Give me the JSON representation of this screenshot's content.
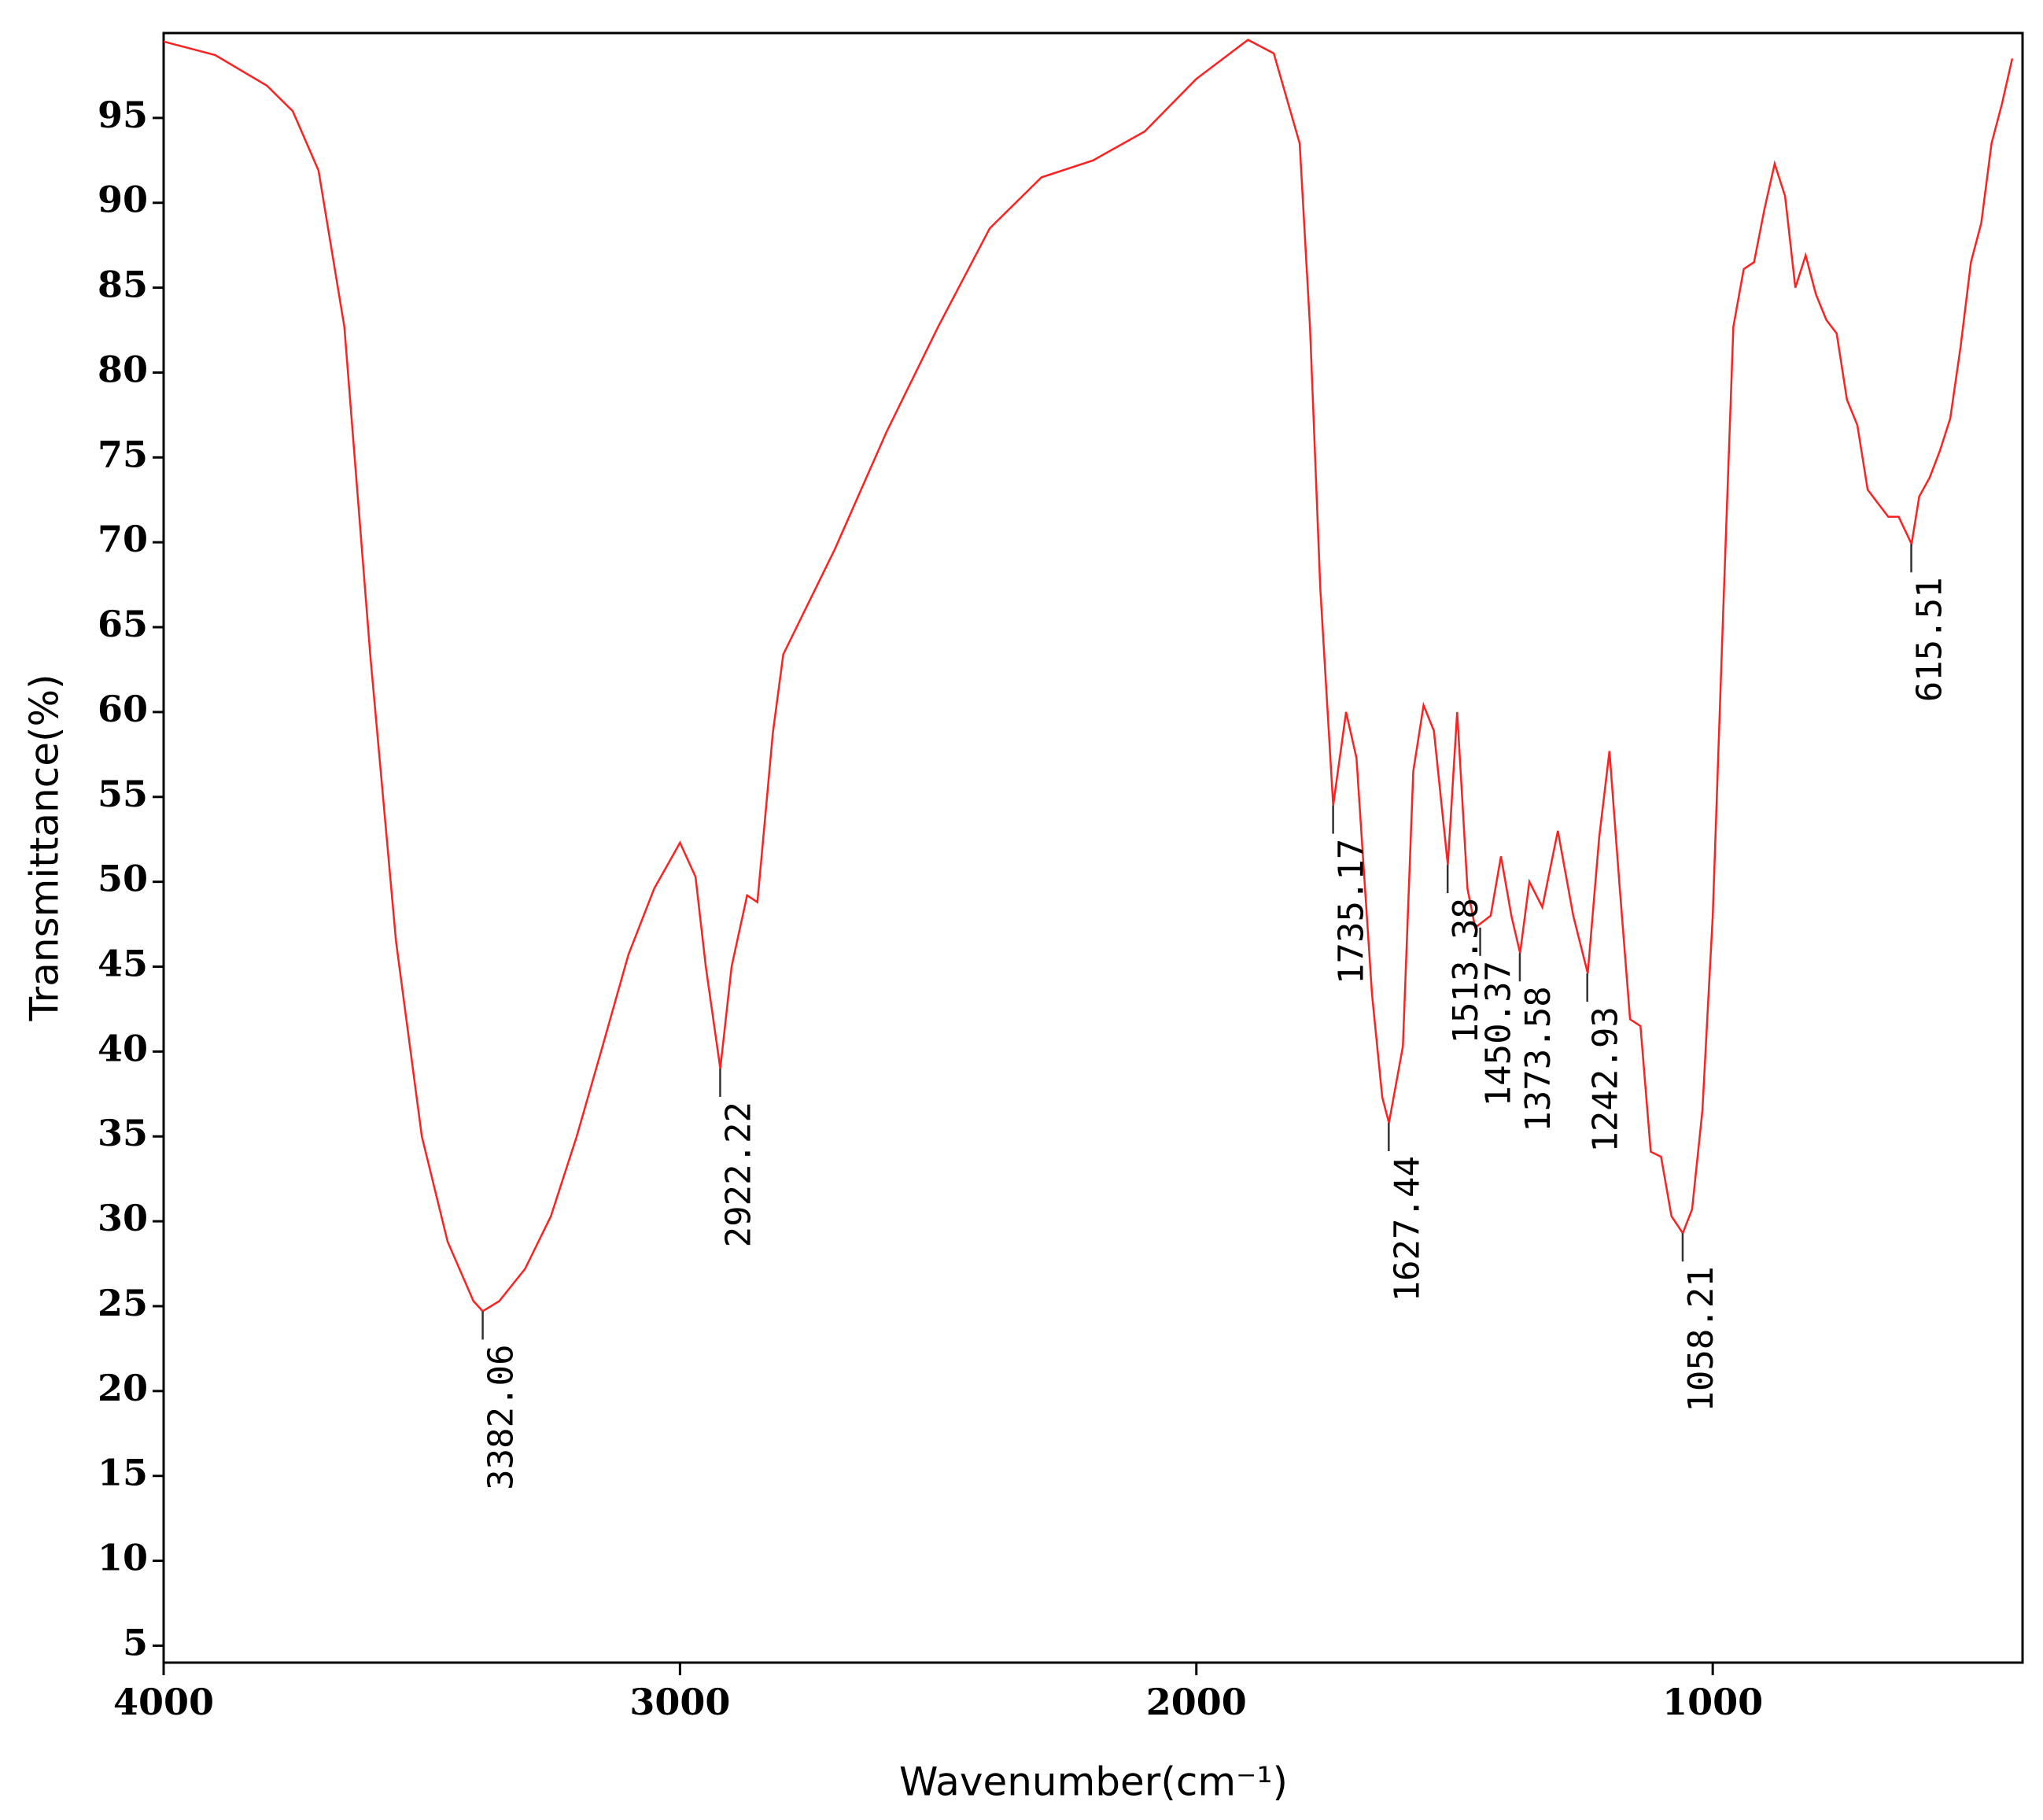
{
  "chart_data": {
    "type": "line",
    "xlabel": "Wavenumber(cm⁻¹)",
    "ylabel": "Transmittance(%)",
    "color": "#ff2020",
    "x": [
      4000,
      3900,
      3800,
      3750,
      3700,
      3650,
      3600,
      3550,
      3500,
      3450,
      3400,
      3382,
      3350,
      3300,
      3250,
      3200,
      3150,
      3100,
      3050,
      3000,
      2970,
      2950,
      2922,
      2900,
      2870,
      2850,
      2820,
      2800,
      2750,
      2700,
      2600,
      2500,
      2400,
      2300,
      2200,
      2100,
      2000,
      1900,
      1850,
      1800,
      1780,
      1760,
      1735,
      1710,
      1690,
      1660,
      1640,
      1627,
      1600,
      1580,
      1560,
      1540,
      1513,
      1495,
      1475,
      1460,
      1430,
      1410,
      1390,
      1373,
      1355,
      1330,
      1300,
      1270,
      1242,
      1220,
      1200,
      1180,
      1160,
      1140,
      1120,
      1100,
      1080,
      1058,
      1040,
      1020,
      1000,
      980,
      960,
      940,
      920,
      900,
      880,
      860,
      840,
      820,
      800,
      780,
      760,
      740,
      720,
      700,
      680,
      660,
      640,
      615,
      600,
      580,
      560,
      540,
      520,
      500,
      480,
      460,
      440,
      420
    ],
    "values": [
      99.5,
      98.7,
      96.9,
      95.4,
      91.9,
      82.7,
      63.4,
      46.5,
      35,
      28.8,
      25.3,
      24.7,
      25.3,
      27.2,
      30.3,
      35,
      40.3,
      45.7,
      49.6,
      52.3,
      50.3,
      45,
      39,
      45,
      49.2,
      48.8,
      58.8,
      63.4,
      66.5,
      69.6,
      76.5,
      82.7,
      88.5,
      91.5,
      92.5,
      94.2,
      97.3,
      99.6,
      98.8,
      93.5,
      82.7,
      67.3,
      54.5,
      60,
      57.3,
      43.4,
      37.3,
      35.8,
      40.3,
      56.5,
      60.4,
      58.9,
      51,
      60,
      49.6,
      47.3,
      48,
      51.5,
      48,
      45.8,
      50,
      48.5,
      53,
      48,
      44.6,
      52.6,
      57.7,
      49.6,
      41.9,
      41.5,
      34.1,
      33.8,
      30.3,
      29.3,
      30.7,
      36.5,
      48,
      65.7,
      82.7,
      86.1,
      86.5,
      89.6,
      92.3,
      90.4,
      85,
      86.9,
      84.6,
      83.1,
      82.3,
      78.4,
      76.9,
      73.1,
      72.3,
      71.5,
      71.5,
      69.9,
      72.7,
      73.8,
      75.4,
      77.3,
      81.5,
      86.5,
      88.8,
      93.5,
      95.8,
      98.5
    ],
    "peaks": {
      "x": [
        3382.06,
        2922.22,
        1735.17,
        1627.44,
        1513.38,
        1450.37,
        1373.58,
        1242.93,
        1058.21,
        615.51
      ],
      "y": [
        24.7,
        39,
        54.5,
        35.8,
        51,
        47.3,
        45.8,
        44.6,
        29.3,
        69.9
      ]
    },
    "xlim": [
      4000,
      400
    ],
    "xticks": [
      4000,
      3000,
      2000,
      1000
    ],
    "ylim": [
      4,
      100
    ],
    "yticks": [
      5,
      10,
      15,
      20,
      25,
      30,
      35,
      40,
      45,
      50,
      55,
      60,
      65,
      70,
      75,
      80,
      85,
      90,
      95
    ]
  }
}
